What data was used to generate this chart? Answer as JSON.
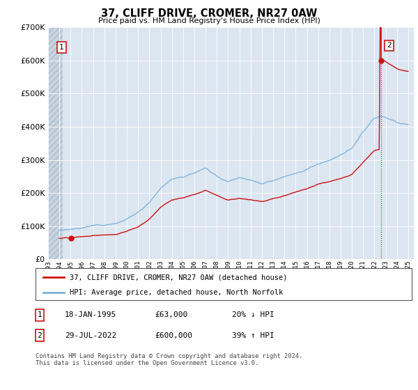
{
  "title": "37, CLIFF DRIVE, CROMER, NR27 0AW",
  "subtitle": "Price paid vs. HM Land Registry's House Price Index (HPI)",
  "ylim": [
    0,
    700000
  ],
  "xlim_start": 1993.0,
  "xlim_end": 2025.5,
  "hpi_color": "#7ab0d8",
  "price_color": "#cc1111",
  "bg_plot": "#dce6f1",
  "bg_hatch_color": "#c8d4e0",
  "transaction1_date": 1995.05,
  "transaction1_price": 63000,
  "transaction2_date": 2022.575,
  "transaction2_price": 600000,
  "legend_line1": "37, CLIFF DRIVE, CROMER, NR27 0AW (detached house)",
  "legend_line2": "HPI: Average price, detached house, North Norfolk",
  "note1_label": "1",
  "note1_date": "18-JAN-1995",
  "note1_price": "£63,000",
  "note1_hpi": "20% ↓ HPI",
  "note2_label": "2",
  "note2_date": "29-JUL-2022",
  "note2_price": "£600,000",
  "note2_hpi": "39% ↑ HPI",
  "footer": "Contains HM Land Registry data © Crown copyright and database right 2024.\nThis data is licensed under the Open Government Licence v3.0."
}
